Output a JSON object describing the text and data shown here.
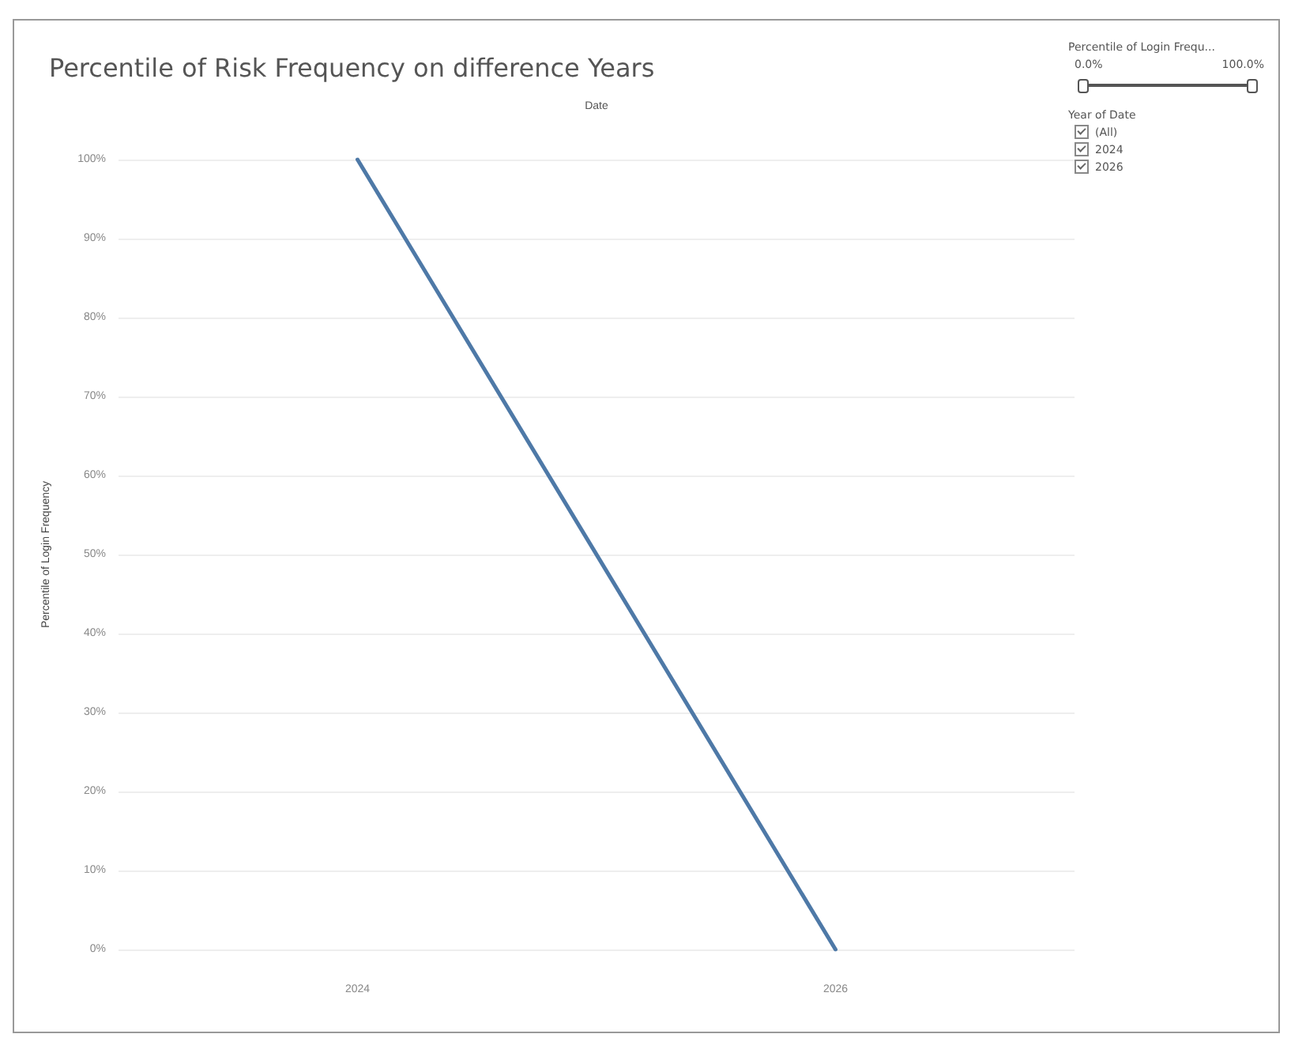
{
  "chart_data": {
    "type": "line",
    "title": "Percentile of Risk Frequency on difference Years",
    "xlabel": "Date",
    "ylabel": "Percentile of Login Frequency",
    "categories": [
      "2024",
      "2026"
    ],
    "series": [
      {
        "color": "#4e79a7",
        "values": [
          100,
          0
        ]
      }
    ],
    "ylim": [
      0,
      100
    ],
    "yticks": [
      {
        "value": 0,
        "label": "0%"
      },
      {
        "value": 10,
        "label": "10%"
      },
      {
        "value": 20,
        "label": "20%"
      },
      {
        "value": 30,
        "label": "30%"
      },
      {
        "value": 40,
        "label": "40%"
      },
      {
        "value": 50,
        "label": "50%"
      },
      {
        "value": 60,
        "label": "60%"
      },
      {
        "value": 70,
        "label": "70%"
      },
      {
        "value": 80,
        "label": "80%"
      },
      {
        "value": 90,
        "label": "90%"
      },
      {
        "value": 100,
        "label": "100%"
      }
    ],
    "grid": "y",
    "marker": "none",
    "line_style": "solid",
    "annotations": [
      "Percentile of Login Frequ...",
      "0.0%",
      "100.0%",
      "Year of Date",
      "(All)",
      "2024",
      "2026"
    ]
  }
}
